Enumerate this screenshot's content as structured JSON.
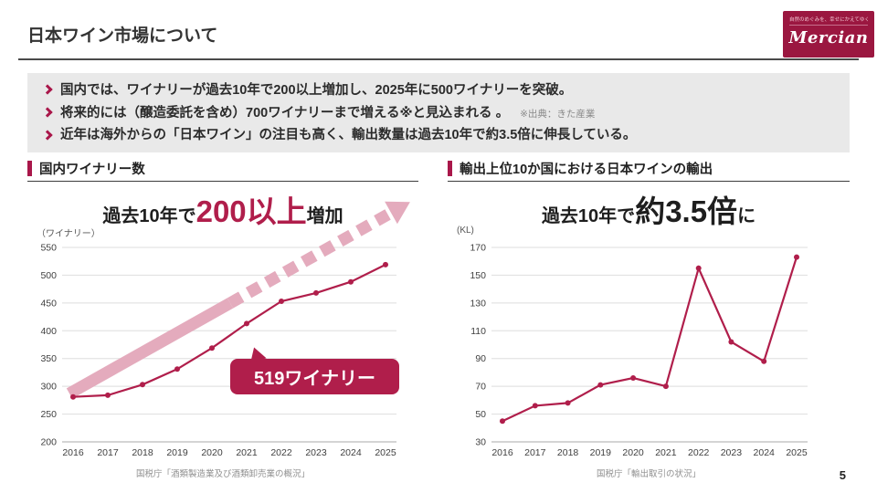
{
  "page": {
    "title": "日本ワイン市場について",
    "page_number": "5"
  },
  "logo": {
    "tagline": "自然のめぐみを、幸せにかえてゆく。",
    "brand": "Mercian"
  },
  "summary": {
    "bullets": [
      {
        "text": "国内では、ワイナリーが過去10年で200以上増加し、2025年に500ワイナリーを突破。",
        "note": ""
      },
      {
        "text": "将来的には（醸造委託を含め）700ワイナリーまで増える※と見込まれる 。",
        "note": "※出典：きた産業"
      },
      {
        "text": "近年は海外からの「日本ワイン」の注目も高く、輸出数量は過去10年で約3.5倍に伸長している。",
        "note": ""
      }
    ]
  },
  "left_chart": {
    "header": "国内ワイナリー数",
    "title_prefix": "過去10年で",
    "title_highlight": "200以上",
    "title_suffix": "増加",
    "unit": "（ワイナリー）",
    "callout": "519ワイナリー",
    "source": "国税庁「酒類製造業及び酒類卸売業の概況」"
  },
  "right_chart": {
    "header": "輸出上位10か国における日本ワインの輸出",
    "title_prefix": "過去10年で",
    "title_highlight": "約3.5倍",
    "title_suffix": "に",
    "unit": "(KL)",
    "source": "国税庁「輸出取引の状況」"
  },
  "chart_data": [
    {
      "type": "line",
      "title": "国内ワイナリー数",
      "x": [
        2016,
        2017,
        2018,
        2019,
        2020,
        2021,
        2022,
        2023,
        2024,
        2025
      ],
      "values": [
        281,
        284,
        303,
        331,
        369,
        413,
        453,
        468,
        488,
        519
      ],
      "xlabel": "",
      "ylabel": "（ワイナリー）",
      "ylim": [
        200,
        550
      ],
      "ytick_step": 50,
      "grid": true,
      "legend": "none",
      "color": "#b01e4b",
      "annotation": "519ワイナリー (2025)"
    },
    {
      "type": "line",
      "title": "輸出上位10か国における日本ワインの輸出",
      "x": [
        2016,
        2017,
        2018,
        2019,
        2020,
        2021,
        2022,
        2023,
        2024,
        2025
      ],
      "values": [
        45,
        56,
        58,
        71,
        76,
        70,
        155,
        102,
        88,
        163
      ],
      "xlabel": "",
      "ylabel": "(KL)",
      "ylim": [
        30,
        170
      ],
      "ytick_step": 20,
      "grid": true,
      "legend": "none",
      "color": "#b01e4b"
    }
  ],
  "colors": {
    "accent": "#a9174a",
    "line": "#b01e4b",
    "logo_bg": "#9b1740",
    "summary_bg": "#e9e9e9",
    "trend_arrow": "#e4abbd"
  }
}
